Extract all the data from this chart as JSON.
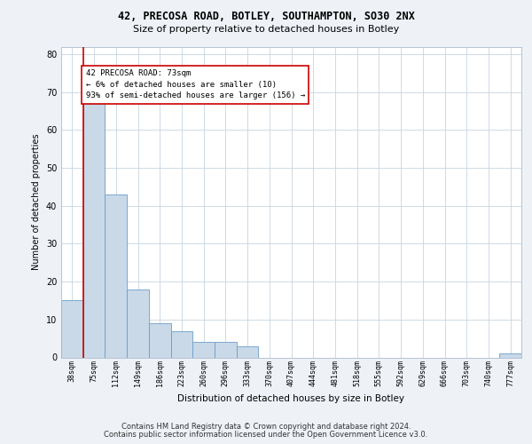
{
  "title1": "42, PRECOSA ROAD, BOTLEY, SOUTHAMPTON, SO30 2NX",
  "title2": "Size of property relative to detached houses in Botley",
  "xlabel": "Distribution of detached houses by size in Botley",
  "ylabel": "Number of detached properties",
  "categories": [
    "38sqm",
    "75sqm",
    "112sqm",
    "149sqm",
    "186sqm",
    "223sqm",
    "260sqm",
    "296sqm",
    "333sqm",
    "370sqm",
    "407sqm",
    "444sqm",
    "481sqm",
    "518sqm",
    "555sqm",
    "592sqm",
    "629sqm",
    "666sqm",
    "703sqm",
    "740sqm",
    "777sqm"
  ],
  "values": [
    15,
    68,
    43,
    18,
    9,
    7,
    4,
    4,
    3,
    0,
    0,
    0,
    0,
    0,
    0,
    0,
    0,
    0,
    0,
    0,
    1
  ],
  "bar_color": "#c9d9e8",
  "bar_edge_color": "#6b9ec9",
  "highlight_line_color": "#cc0000",
  "annotation_line1": "42 PRECOSA ROAD: 73sqm",
  "annotation_line2": "← 6% of detached houses are smaller (10)",
  "annotation_line3": "93% of semi-detached houses are larger (156) →",
  "annotation_box_color": "#ffffff",
  "annotation_box_edge_color": "#cc0000",
  "ylim": [
    0,
    82
  ],
  "yticks": [
    0,
    10,
    20,
    30,
    40,
    50,
    60,
    70,
    80
  ],
  "footer1": "Contains HM Land Registry data © Crown copyright and database right 2024.",
  "footer2": "Contains public sector information licensed under the Open Government Licence v3.0.",
  "background_color": "#eef2f7",
  "plot_background_color": "#ffffff",
  "grid_color": "#c8d4e0"
}
